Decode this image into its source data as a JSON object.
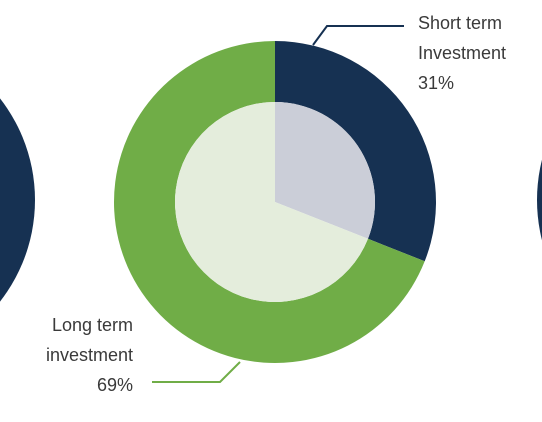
{
  "chart_data": {
    "type": "pie",
    "donut": true,
    "categories": [
      "Short term Investment",
      "Long term investment"
    ],
    "values": [
      31,
      69
    ],
    "value_labels": [
      "31%",
      "69%"
    ],
    "colors": [
      "#163152",
      "#70ad47"
    ],
    "inner_colors": [
      "#cbced8",
      "#e4eddc"
    ]
  }
}
